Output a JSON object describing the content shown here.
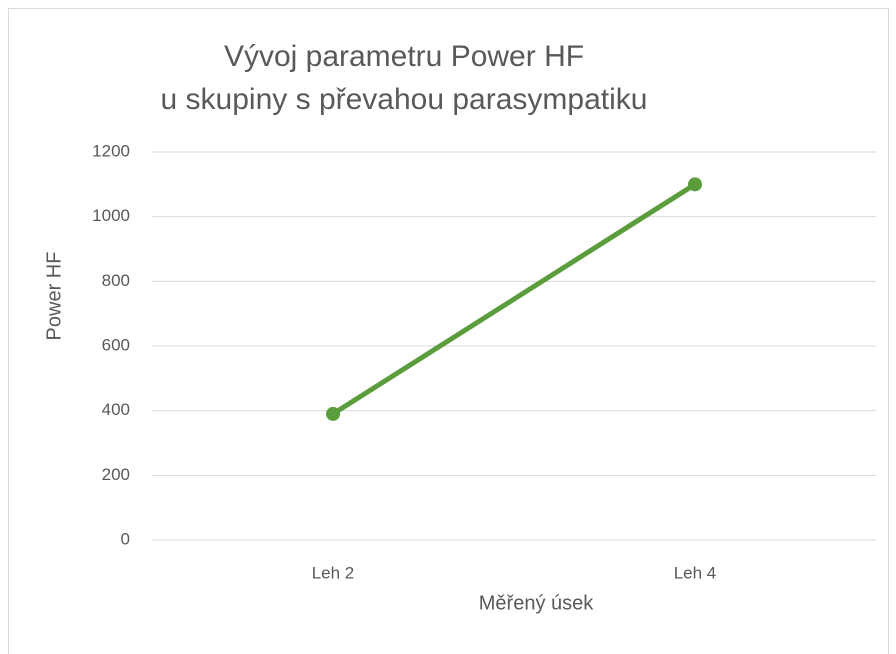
{
  "chart_data": {
    "type": "line",
    "title": [
      "Vývoj parametru Power HF",
      "u skupiny s převahou parasympatiku"
    ],
    "x_label": "Měřený úsek",
    "y_label": "Power HF",
    "categories": [
      "Leh 2",
      "Leh 4"
    ],
    "series": [
      {
        "name": "Power HF",
        "color": "#5b9d3c",
        "values": [
          390,
          1100
        ]
      }
    ],
    "ylim": [
      0,
      1200
    ],
    "yticks": [
      0,
      200,
      400,
      600,
      800,
      1000,
      1200
    ],
    "grid": true,
    "legend": false
  }
}
